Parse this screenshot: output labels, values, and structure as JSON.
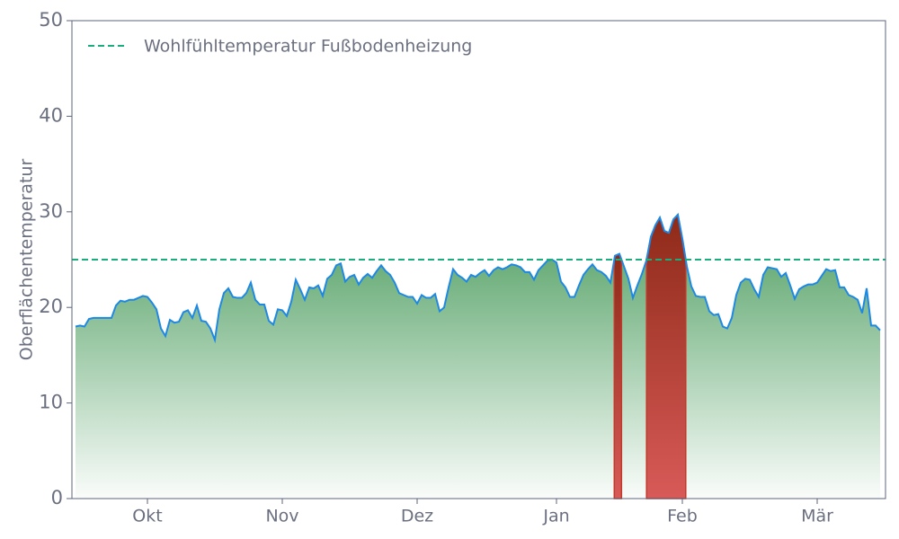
{
  "chart_data": {
    "type": "line",
    "ylabel": "Oberflächentemperatur",
    "x": [
      0,
      1,
      2,
      3,
      4,
      5,
      6,
      7,
      8,
      9,
      10,
      11,
      12,
      13,
      14,
      15,
      16,
      17,
      18,
      19,
      20,
      21,
      22,
      23,
      24,
      25,
      26,
      27,
      28,
      29,
      30,
      31,
      32,
      33,
      34,
      35,
      36,
      37,
      38,
      39,
      40,
      41,
      42,
      43,
      44,
      45,
      46,
      47,
      48,
      49,
      50,
      51,
      52,
      53,
      54,
      55,
      56,
      57,
      58,
      59,
      60,
      61,
      62,
      63,
      64,
      65,
      66,
      67,
      68,
      69,
      70,
      71,
      72,
      73,
      74,
      75,
      76,
      77,
      78,
      79,
      80,
      81,
      82,
      83,
      84,
      85,
      86,
      87,
      88,
      89,
      90,
      91,
      92,
      93,
      94,
      95,
      96,
      97,
      98,
      99,
      100,
      101,
      102,
      103,
      104,
      105,
      106,
      107,
      108,
      109,
      110,
      111,
      112,
      113,
      114,
      115,
      116,
      117,
      118,
      119,
      120,
      121,
      122,
      123,
      124,
      125,
      126,
      127,
      128,
      129,
      130,
      131,
      132,
      133,
      134,
      135,
      136,
      137,
      138,
      139,
      140,
      141,
      142,
      143,
      144,
      145,
      146,
      147,
      148,
      149,
      150,
      151,
      152,
      153,
      154,
      155,
      156,
      157,
      158,
      159,
      160,
      161,
      162,
      163,
      164,
      165,
      166,
      167,
      168,
      169,
      170,
      171,
      172,
      173,
      174,
      175,
      176,
      177,
      178,
      179
    ],
    "series": [
      {
        "color": "#1e88e5",
        "fill_color": "#4e9e60",
        "above_color": "#a52a1e",
        "values": [
          18.0,
          18.1,
          18.0,
          18.8,
          18.9,
          18.9,
          18.9,
          18.9,
          18.9,
          20.2,
          20.7,
          20.6,
          20.8,
          20.8,
          21.0,
          21.2,
          21.1,
          20.5,
          19.8,
          17.8,
          17.0,
          18.7,
          18.4,
          18.5,
          19.5,
          19.7,
          18.9,
          20.2,
          18.6,
          18.5,
          17.8,
          16.6,
          19.8,
          21.5,
          22.0,
          21.1,
          21.0,
          21.0,
          21.5,
          22.6,
          20.8,
          20.3,
          20.3,
          18.6,
          18.2,
          19.8,
          19.7,
          19.1,
          20.6,
          22.9,
          21.9,
          20.8,
          22.1,
          22.0,
          22.3,
          21.2,
          23.0,
          23.4,
          24.4,
          24.6,
          22.7,
          23.2,
          23.4,
          22.4,
          23.1,
          23.5,
          23.1,
          23.8,
          24.4,
          23.8,
          23.4,
          22.6,
          21.5,
          21.3,
          21.1,
          21.1,
          20.4,
          21.3,
          21.0,
          21.0,
          21.4,
          19.6,
          20.0,
          22.1,
          24.0,
          23.4,
          23.1,
          22.7,
          23.4,
          23.2,
          23.6,
          23.9,
          23.3,
          23.9,
          24.2,
          24.0,
          24.2,
          24.5,
          24.4,
          24.2,
          23.7,
          23.7,
          22.9,
          23.9,
          24.4,
          24.9,
          25.0,
          24.7,
          22.7,
          22.1,
          21.1,
          21.1,
          22.3,
          23.4,
          24.0,
          24.5,
          23.9,
          23.7,
          23.3,
          22.6,
          25.4,
          25.6,
          24.3,
          23.0,
          21.0,
          22.3,
          23.5,
          24.9,
          27.4,
          28.6,
          29.4,
          28.0,
          27.8,
          29.2,
          29.7,
          27.2,
          24.3,
          22.2,
          21.2,
          21.1,
          21.1,
          19.6,
          19.2,
          19.3,
          18.0,
          17.8,
          18.9,
          21.3,
          22.6,
          23.0,
          22.9,
          21.9,
          21.1,
          23.4,
          24.2,
          24.1,
          24.0,
          23.2,
          23.6,
          22.3,
          20.9,
          21.9,
          22.2,
          22.4,
          22.4,
          22.6,
          23.3,
          24.0,
          23.8,
          23.9,
          22.1,
          22.1,
          21.3,
          21.1,
          20.8,
          19.4,
          22.0,
          18.1,
          18.1,
          17.6
        ]
      }
    ],
    "threshold": {
      "value": 25,
      "label": "Wohlfühltemperatur Fußbodenheizung",
      "color": "#1aae7c"
    },
    "legend": "upper left",
    "xlim": [
      -0.8,
      180.2
    ],
    "xticks": [
      {
        "value": 16,
        "label": "Okt"
      },
      {
        "value": 46,
        "label": "Nov"
      },
      {
        "value": 76,
        "label": "Dez"
      },
      {
        "value": 107,
        "label": "Jan"
      },
      {
        "value": 135,
        "label": "Feb"
      },
      {
        "value": 165,
        "label": "Mär"
      }
    ],
    "ylim": [
      0,
      50
    ],
    "yticks": [
      0,
      10,
      20,
      30,
      40,
      50
    ]
  }
}
